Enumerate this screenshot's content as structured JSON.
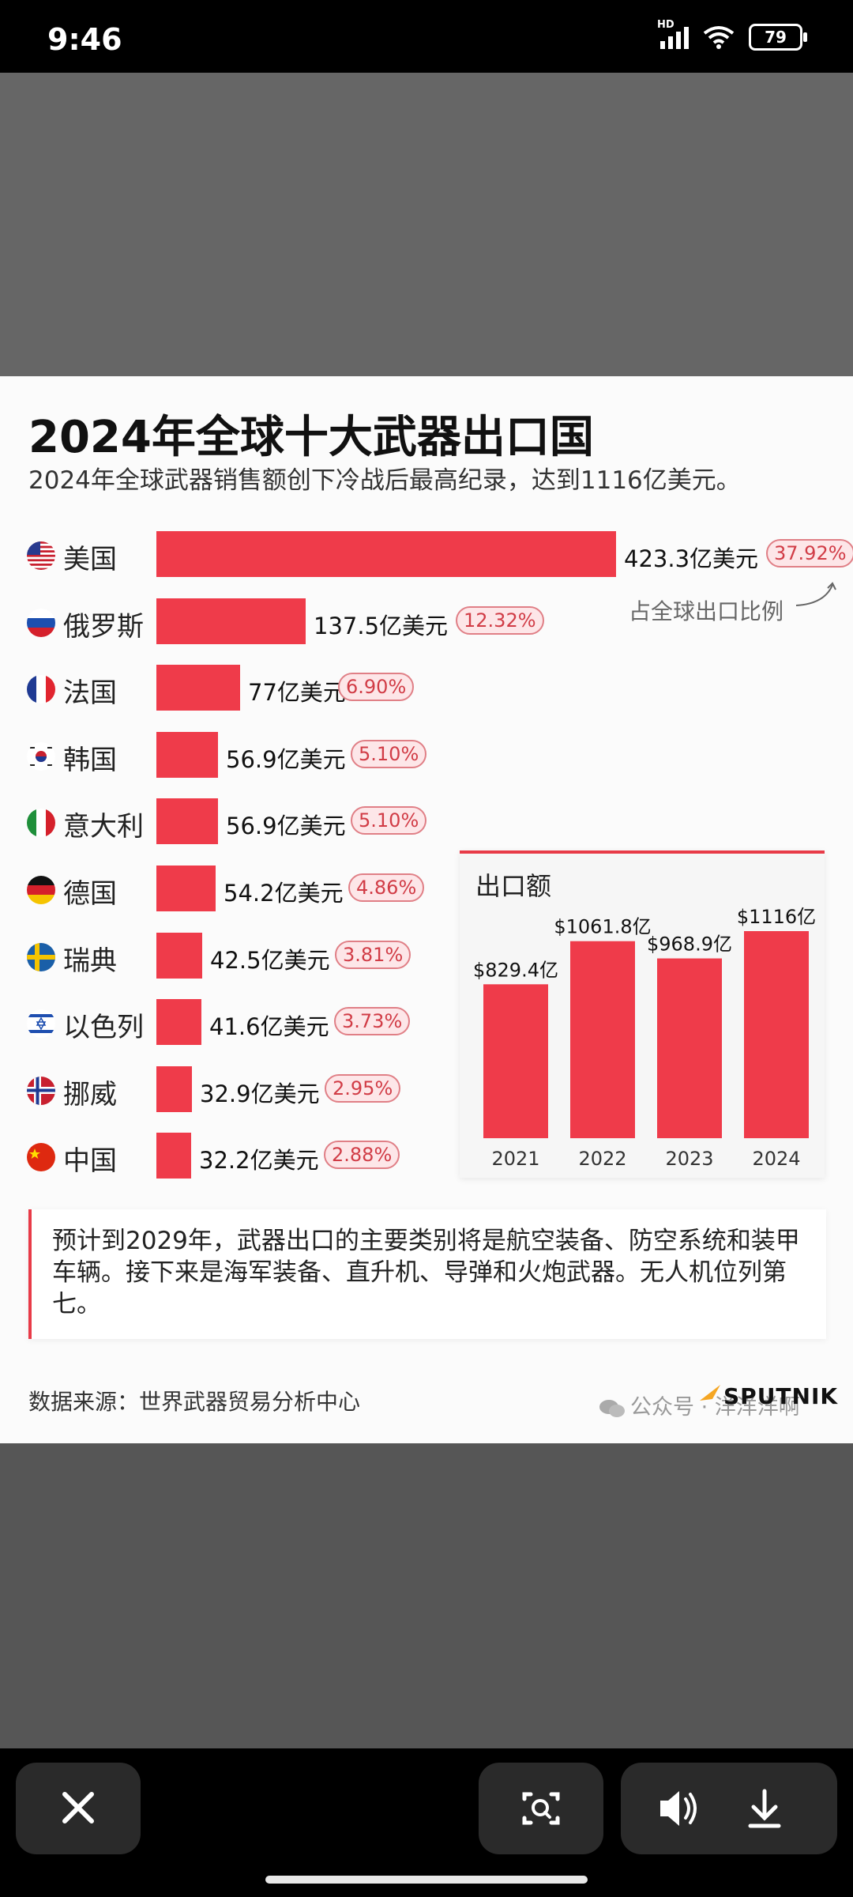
{
  "status_bar": {
    "time": "9:46",
    "network": "HD",
    "battery": "79"
  },
  "infographic": {
    "title": "2024年全球十大武器出口国",
    "subtitle": "2024年全球武器销售额创下冷战后最高纪录，达到1116亿美元。",
    "share_note": "占全球出口比例",
    "countries": [
      {
        "name": "美国",
        "flag": "us-flag",
        "value": 423.3,
        "value_label": "423.3亿美元",
        "share": "37.92%"
      },
      {
        "name": "俄罗斯",
        "flag": "ru-flag",
        "value": 137.5,
        "value_label": "137.5亿美元",
        "share": "12.32%"
      },
      {
        "name": "法国",
        "flag": "fr-flag",
        "value": 77,
        "value_label": "77亿美元",
        "share": "6.90%"
      },
      {
        "name": "韩国",
        "flag": "kr-flag",
        "value": 56.9,
        "value_label": "56.9亿美元",
        "share": "5.10%"
      },
      {
        "name": "意大利",
        "flag": "it-flag",
        "value": 56.9,
        "value_label": "56.9亿美元",
        "share": "5.10%"
      },
      {
        "name": "德国",
        "flag": "de-flag",
        "value": 54.2,
        "value_label": "54.2亿美元",
        "share": "4.86%"
      },
      {
        "name": "瑞典",
        "flag": "se-flag",
        "value": 42.5,
        "value_label": "42.5亿美元",
        "share": "3.81%"
      },
      {
        "name": "以色列",
        "flag": "il-flag",
        "value": 41.6,
        "value_label": "41.6亿美元",
        "share": "3.73%"
      },
      {
        "name": "挪威",
        "flag": "no-flag",
        "value": 32.9,
        "value_label": "32.9亿美元",
        "share": "2.95%"
      },
      {
        "name": "中国",
        "flag": "cn-flag",
        "value": 32.2,
        "value_label": "32.2亿美元",
        "share": "2.88%"
      }
    ],
    "inset": {
      "title": "出口额",
      "years": [
        "2021",
        "2022",
        "2023",
        "2024"
      ],
      "values": [
        829.4,
        1061.8,
        968.9,
        1116
      ],
      "labels": [
        "$829.4亿",
        "$1061.8亿",
        "$968.9亿",
        "$1116亿"
      ]
    },
    "forecast_text": "预计到2029年，武器出口的主要类别将是航空装备、防空系统和装甲车辆。接下来是海军装备、直升机、导弹和火炮武器。无人机位列第七。",
    "source": "数据来源：世界武器贸易分析中心",
    "watermark": "公众号 · 洋洋洋啊",
    "brand": "SPUTNIK"
  },
  "chart_data": [
    {
      "type": "bar",
      "categories": [
        "美国",
        "俄罗斯",
        "法国",
        "韩国",
        "意大利",
        "德国",
        "瑞典",
        "以色列",
        "挪威",
        "中国"
      ],
      "values": [
        423.3,
        137.5,
        77,
        56.9,
        56.9,
        54.2,
        42.5,
        41.6,
        32.9,
        32.2
      ],
      "shares": [
        "37.92%",
        "12.32%",
        "6.90%",
        "5.10%",
        "5.10%",
        "4.86%",
        "3.81%",
        "3.73%",
        "2.95%",
        "2.88%"
      ],
      "title": "2024年全球十大武器出口国",
      "orientation": "horizontal",
      "color": "#ef3b4a"
    },
    {
      "type": "bar",
      "categories": [
        "2021",
        "2022",
        "2023",
        "2024"
      ],
      "values": [
        829.4,
        1061.8,
        968.9,
        1116
      ],
      "title": "出口额",
      "color": "#ef3b4a"
    }
  ],
  "viewer_controls": {
    "close_icon": "close-icon",
    "scan_icon": "scan-icon",
    "sound_icon": "speaker-icon",
    "download_icon": "download-icon"
  }
}
